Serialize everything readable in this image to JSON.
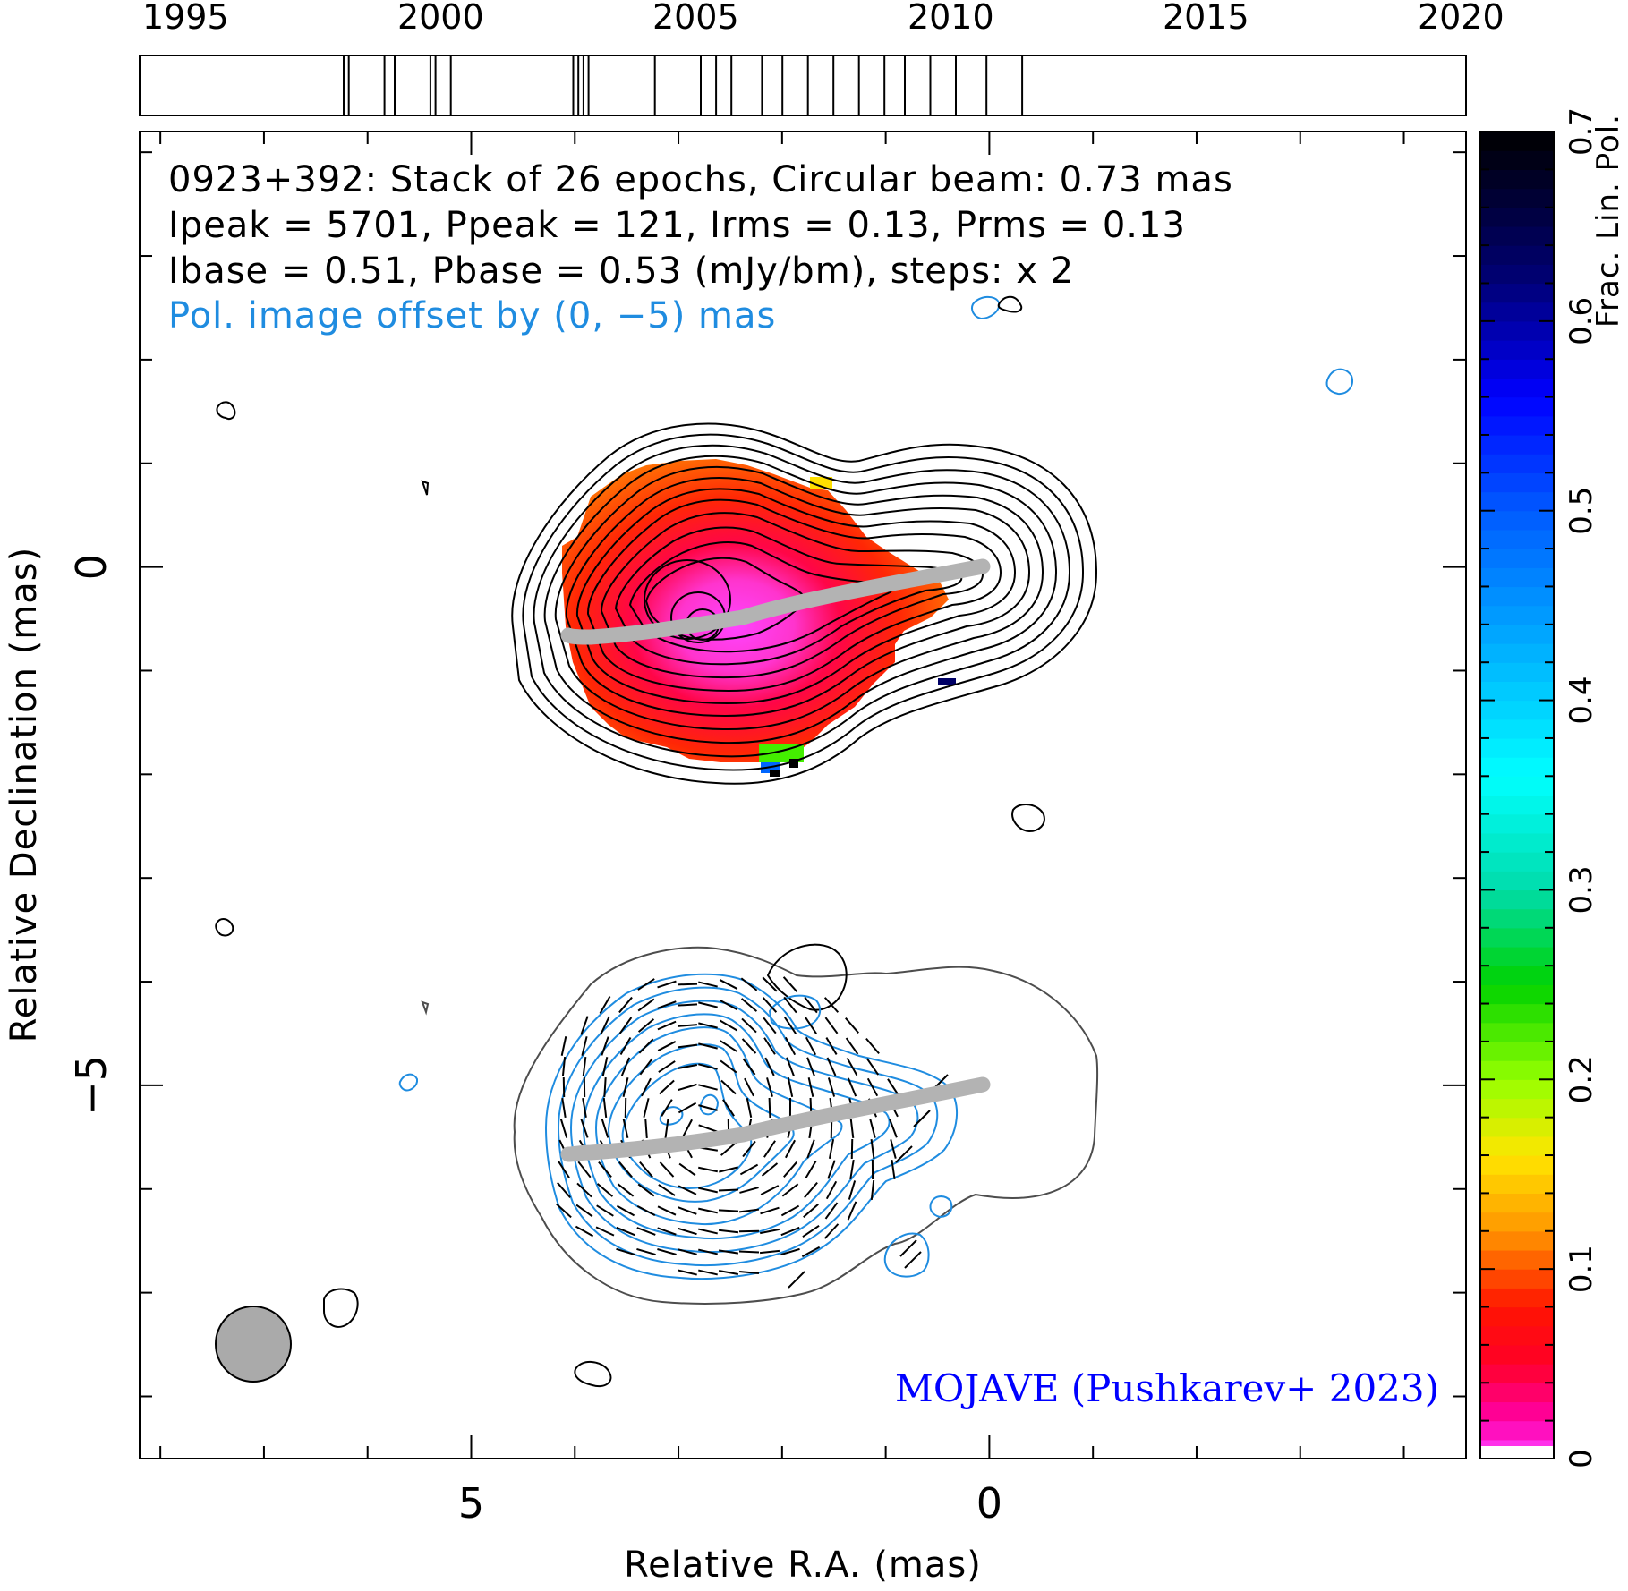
{
  "chart_data": {
    "type": "heatmap",
    "title_lines": [
      "0923+392: Stack of 26 epochs, Circular beam: 0.73 mas",
      "Ipeak = 5701, Ppeak = 121, Irms = 0.13, Prms = 0.13",
      "Ibase = 0.51, Pbase = 0.53 (mJy/bm), steps: x 2"
    ],
    "pol_offset_note": "Pol. image offset by (0, −5) mas",
    "credit": "MOJAVE (Pushkarev+ 2023)",
    "xlabel": "Relative R.A. (mas)",
    "ylabel": "Relative Declination (mas)",
    "colorbar_label": "Frac. Lin. Pol.",
    "xlim": [
      8.2,
      -4.6
    ],
    "ylim": [
      -8.6,
      4.2
    ],
    "x_ticklabels": [
      {
        "value": 5,
        "label": "5"
      },
      {
        "value": 0,
        "label": "0"
      }
    ],
    "y_ticklabels": [
      {
        "value": 0,
        "label": "0"
      },
      {
        "value": -5,
        "label": "−5"
      }
    ],
    "x_minor_step": 1,
    "y_minor_step": 1,
    "colorbar": {
      "range": [
        0,
        0.7
      ],
      "ticks": [
        {
          "value": 0,
          "label": "0"
        },
        {
          "value": 0.1,
          "label": "0.1"
        },
        {
          "value": 0.2,
          "label": "0.2"
        },
        {
          "value": 0.3,
          "label": "0.3"
        },
        {
          "value": 0.4,
          "label": "0.4"
        },
        {
          "value": 0.5,
          "label": "0.5"
        },
        {
          "value": 0.6,
          "label": "0.6"
        },
        {
          "value": 0.7,
          "label": "0.7"
        }
      ]
    },
    "timeline": {
      "range": [
        1994.1,
        2020.1
      ],
      "tick_labels": [
        {
          "value": 1995,
          "label": "1995"
        },
        {
          "value": 2000,
          "label": "2000"
        },
        {
          "value": 2005,
          "label": "2005"
        },
        {
          "value": 2010,
          "label": "2010"
        },
        {
          "value": 2015,
          "label": "2015"
        },
        {
          "value": 2020,
          "label": "2020"
        }
      ],
      "epochs": [
        1998.1,
        1998.2,
        1998.9,
        1999.1,
        1999.8,
        1999.9,
        2000.2,
        2002.6,
        2002.7,
        2002.8,
        2002.9,
        2004.2,
        2005.1,
        2005.4,
        2005.7,
        2006.3,
        2006.7,
        2007.2,
        2007.7,
        2008.2,
        2008.7,
        2009.1,
        2009.6,
        2010.1,
        2010.7,
        2011.4
      ],
      "epoch_count": 26
    },
    "beam": {
      "diameter_mas": 0.73,
      "center": [
        7.0,
        -7.5
      ]
    },
    "jet_ridgeline": {
      "stokes_i": [
        [
          0.0,
          0.0
        ],
        [
          1.0,
          -0.15
        ],
        [
          2.0,
          -0.3
        ],
        [
          3.0,
          -0.45
        ],
        [
          4.0,
          -0.58
        ],
        [
          4.0,
          -0.72
        ]
      ],
      "polarization": [
        [
          0.0,
          -5.0
        ],
        [
          1.0,
          -5.15
        ],
        [
          2.0,
          -5.3
        ],
        [
          3.0,
          -5.45
        ],
        [
          4.0,
          -5.58
        ],
        [
          4.0,
          -5.72
        ]
      ]
    },
    "stokes_i_core": [
      2.7,
      -0.55
    ],
    "polarized_core": [
      2.7,
      -5.55
    ],
    "frac_pol_colors": [
      "#ff40ff",
      "#ff0066",
      "#ff0000",
      "#ff6600",
      "#ff9900",
      "#ffdd00",
      "#eeff00",
      "#99ff00",
      "#00dd00",
      "#00ddaa",
      "#00ffff",
      "#00aaff",
      "#0066ff",
      "#0000ff",
      "#000099",
      "#000000"
    ],
    "contour_colors": {
      "stokes_i": "#000000",
      "polarized": "#1f8ce0",
      "total_outline": "#4d4d4d",
      "evpa": "#000000",
      "ridgeline": "#b3b3b3"
    }
  },
  "colors": {
    "title": "#000000",
    "offset_note": "#1f8ce0",
    "credit": "#0000ff",
    "beam_fill": "#aaaaaa"
  }
}
